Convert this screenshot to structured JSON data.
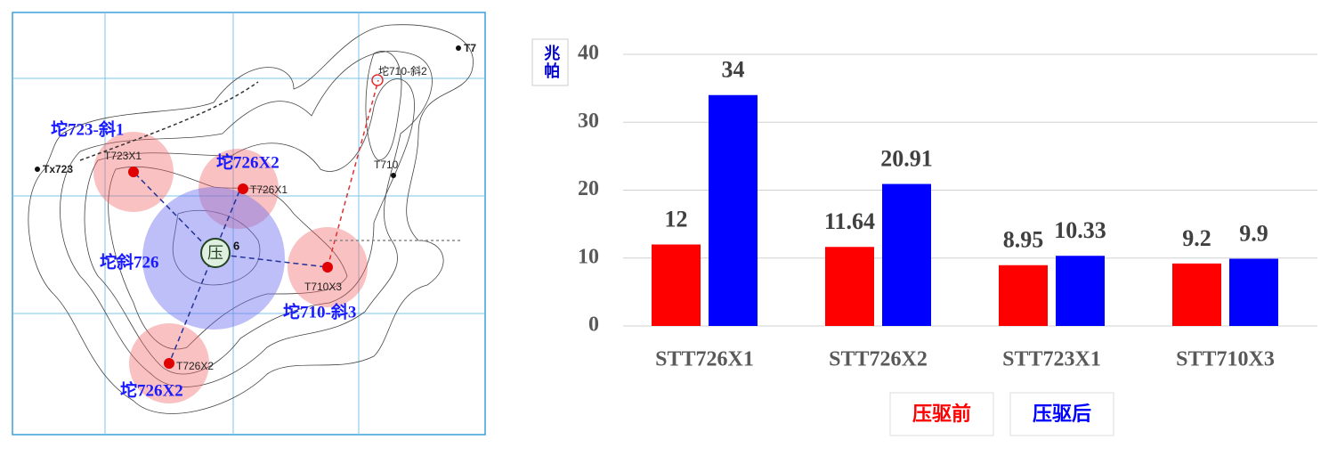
{
  "map": {
    "labels": [
      "坨723-斜1",
      "Tx723",
      "T723X1",
      "坨726X2",
      "T726X1",
      "T710",
      "T7",
      "坨710-斜2",
      "坨斜726",
      "压",
      "6",
      "T710X3",
      "坨710-斜3",
      "T726X2",
      "坨726X2"
    ]
  },
  "chart_data": {
    "type": "bar",
    "y_label": "兆帕",
    "categories": [
      "STT726X1",
      "STT726X2",
      "STT723X1",
      "STT710X3"
    ],
    "series": [
      {
        "name": "压驱前",
        "color": "#ff0000",
        "values": [
          12,
          11.64,
          8.95,
          9.2
        ]
      },
      {
        "name": "压驱后",
        "color": "#0000ff",
        "values": [
          34,
          20.91,
          10.33,
          9.9
        ]
      }
    ],
    "ylim": [
      0,
      40
    ],
    "yticks": [
      0,
      10,
      20,
      30,
      40
    ],
    "grid": true
  }
}
